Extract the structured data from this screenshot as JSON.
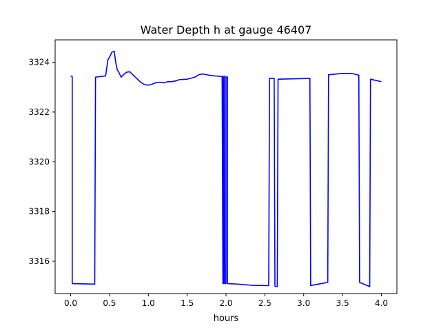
{
  "chart_data": {
    "type": "line",
    "title": "Water Depth h at gauge 46407",
    "xlabel": "hours",
    "ylabel": "",
    "xlim": [
      -0.2,
      4.2
    ],
    "ylim": [
      3314.7,
      3324.9
    ],
    "xticks": [
      0.0,
      0.5,
      1.0,
      1.5,
      2.0,
      2.5,
      3.0,
      3.5,
      4.0
    ],
    "xtick_labels": [
      "0.0",
      "0.5",
      "1.0",
      "1.5",
      "2.0",
      "2.5",
      "3.0",
      "3.5",
      "4.0"
    ],
    "yticks": [
      3316,
      3318,
      3320,
      3322,
      3324
    ],
    "ytick_labels": [
      "3316",
      "3318",
      "3320",
      "3322",
      "3324"
    ],
    "grid": false,
    "series": [
      {
        "color": "#0000ff",
        "x": [
          0.0,
          0.02,
          0.02,
          0.31,
          0.32,
          0.45,
          0.48,
          0.5,
          0.53,
          0.56,
          0.58,
          0.6,
          0.62,
          0.65,
          0.68,
          0.72,
          0.76,
          0.8,
          0.85,
          0.9,
          0.95,
          1.0,
          1.05,
          1.1,
          1.15,
          1.2,
          1.25,
          1.3,
          1.35,
          1.4,
          1.5,
          1.6,
          1.65,
          1.7,
          1.75,
          1.8,
          1.85,
          1.9,
          1.95,
          1.96,
          1.96,
          1.97,
          1.975,
          1.98,
          1.985,
          1.99,
          2.0,
          2.0,
          2.02,
          2.02,
          2.03,
          2.03,
          2.15,
          2.35,
          2.55,
          2.56,
          2.62,
          2.63,
          2.66,
          2.67,
          3.08,
          3.09,
          3.31,
          3.32,
          3.5,
          3.62,
          3.71,
          3.72,
          3.85,
          3.86,
          4.0
        ],
        "y": [
          3323.45,
          3323.42,
          3315.1,
          3315.08,
          3323.4,
          3323.45,
          3324.1,
          3324.2,
          3324.4,
          3324.45,
          3324.0,
          3323.7,
          3323.6,
          3323.4,
          3323.5,
          3323.6,
          3323.62,
          3323.5,
          3323.35,
          3323.2,
          3323.1,
          3323.08,
          3323.12,
          3323.18,
          3323.2,
          3323.17,
          3323.22,
          3323.22,
          3323.25,
          3323.3,
          3323.32,
          3323.4,
          3323.5,
          3323.53,
          3323.5,
          3323.47,
          3323.45,
          3323.44,
          3323.43,
          3315.1,
          3323.42,
          3315.1,
          3323.45,
          3323.42,
          3315.1,
          3315.1,
          3315.1,
          3323.42,
          3323.4,
          3315.1,
          3315.1,
          3315.1,
          3315.08,
          3315.03,
          3315.02,
          3323.35,
          3323.35,
          3315.0,
          3314.98,
          3323.32,
          3323.35,
          3315.02,
          3315.15,
          3323.5,
          3323.55,
          3323.55,
          3323.48,
          3315.15,
          3314.98,
          3323.32,
          3323.22
        ]
      }
    ]
  }
}
